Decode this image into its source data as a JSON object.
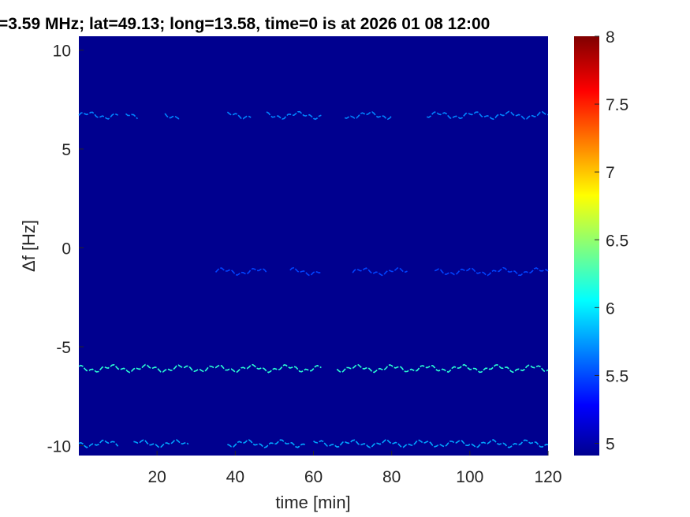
{
  "chart_data": {
    "type": "heatmap",
    "title": "=3.59 MHz;  lat=49.13; long=13.58, time=0 is at 2026 01 08 12:00",
    "xlabel": "time [min]",
    "ylabel": "Δf [Hz]",
    "xlim": [
      0,
      120
    ],
    "ylim": [
      -10.5,
      10.7
    ],
    "xticks": [
      20,
      40,
      60,
      80,
      100,
      120
    ],
    "yticks": [
      10,
      5,
      0,
      -5,
      -10
    ],
    "colorbar": {
      "colormap": "jet",
      "clim": [
        4.91,
        8
      ],
      "ticks": [
        5,
        5.5,
        6,
        6.5,
        7,
        7.5,
        8
      ],
      "ticklabels": [
        "5",
        "5.5",
        "6",
        "6.5",
        "7",
        "7.5",
        "8"
      ]
    },
    "background_value": 4.91,
    "traces": [
      {
        "df": 6.7,
        "segments": [
          [
            0,
            10
          ],
          [
            12,
            15
          ],
          [
            22,
            26
          ],
          [
            38,
            44
          ],
          [
            48,
            62
          ],
          [
            68,
            80
          ],
          [
            89,
            120
          ]
        ],
        "level": 5.7
      },
      {
        "df": -1.2,
        "segments": [
          [
            35,
            48
          ],
          [
            54,
            62
          ],
          [
            70,
            84
          ],
          [
            91,
            120
          ]
        ],
        "level": 5.5
      },
      {
        "df": -6.1,
        "segments": [
          [
            0,
            62
          ],
          [
            66,
            120
          ]
        ],
        "level": 6.2
      },
      {
        "df": -9.9,
        "segments": [
          [
            0,
            10
          ],
          [
            14,
            28
          ],
          [
            38,
            58
          ],
          [
            60,
            120
          ]
        ],
        "level": 5.8
      }
    ]
  }
}
